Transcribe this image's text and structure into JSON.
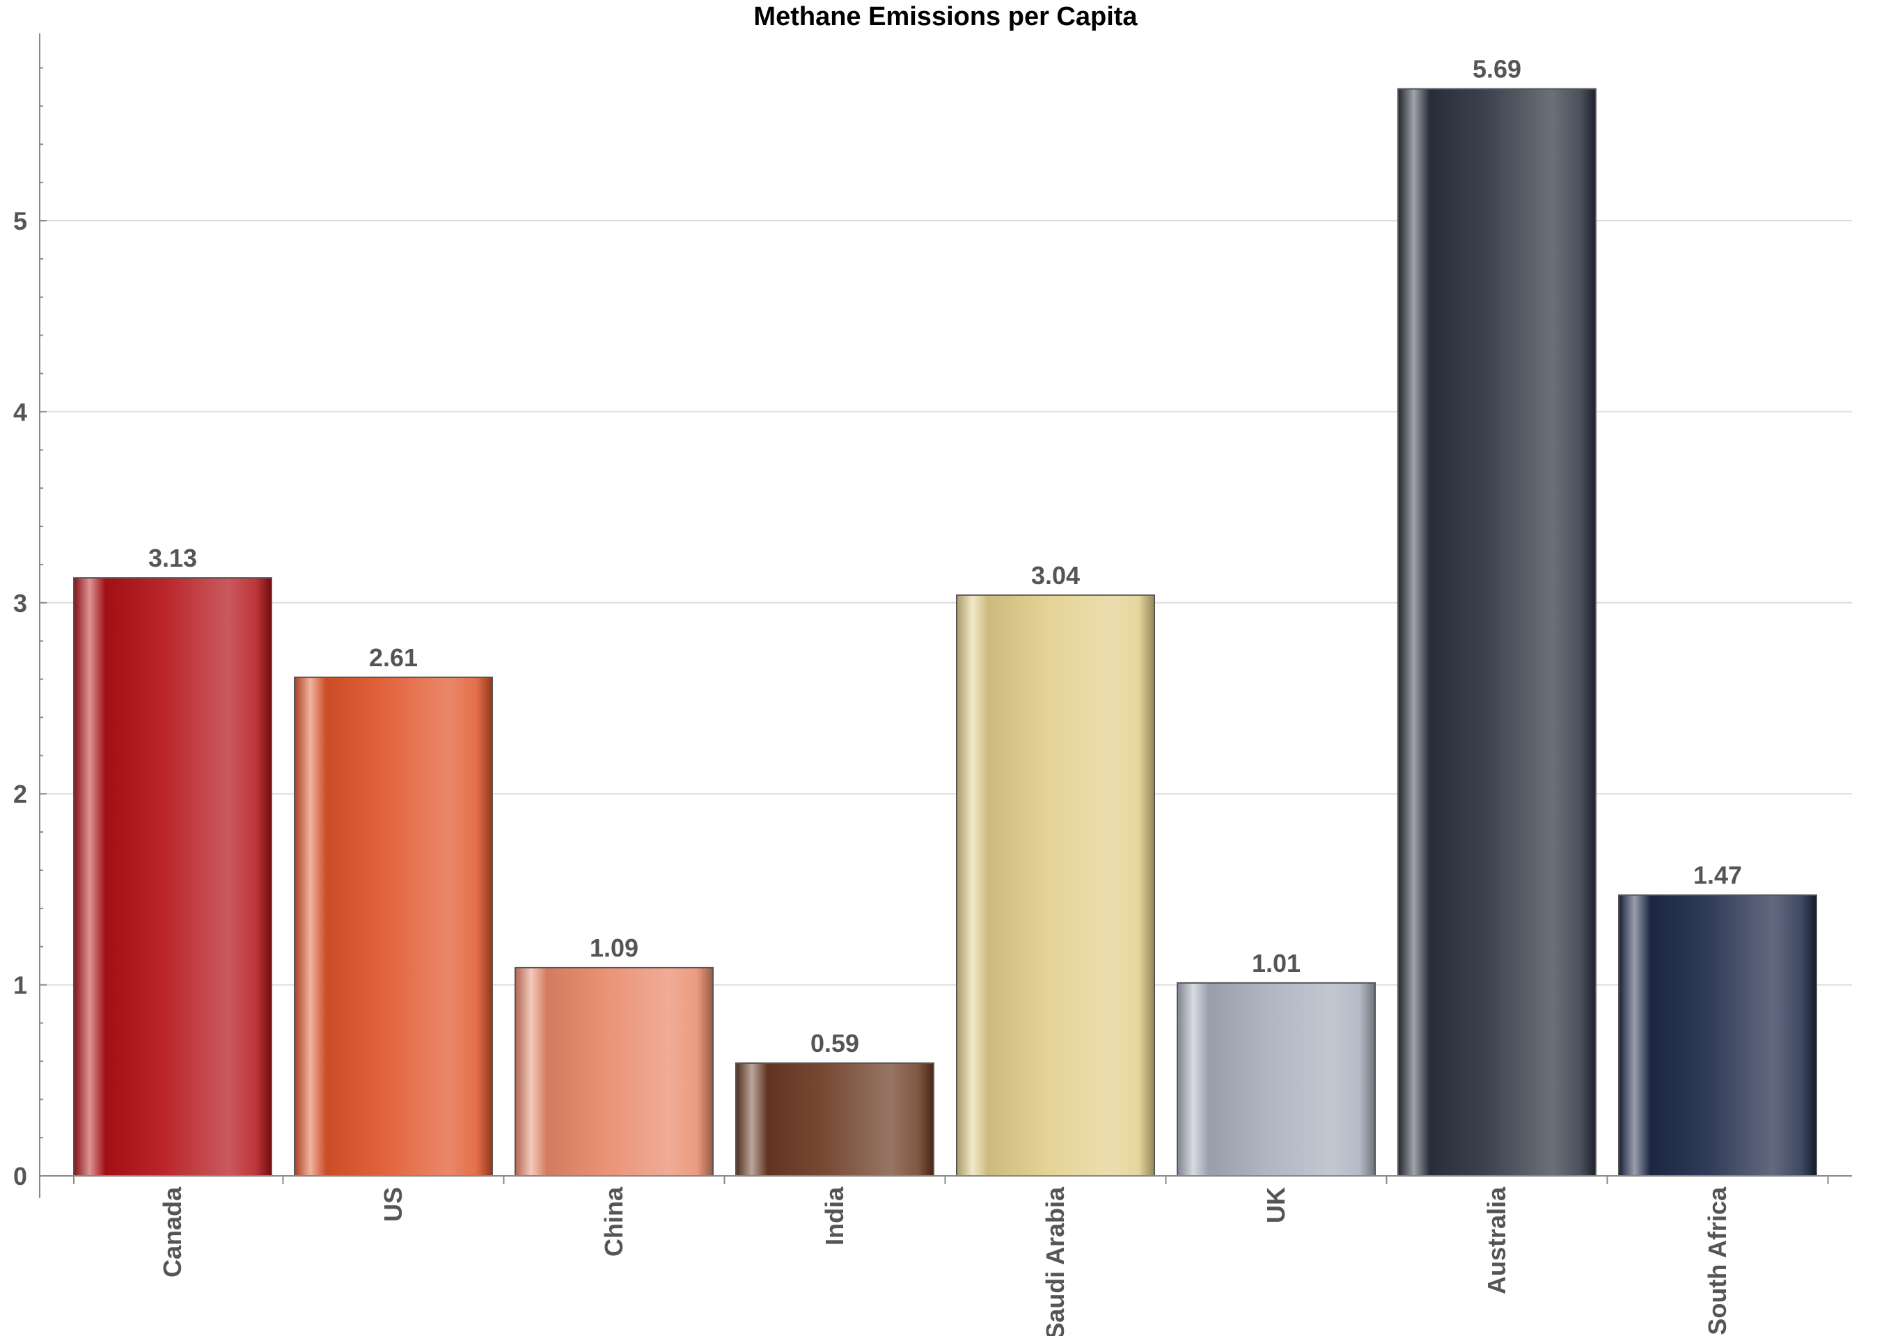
{
  "chart_data": {
    "type": "bar",
    "title": "Methane Emissions per Capita",
    "xlabel": "",
    "ylabel": "",
    "ylim": [
      0,
      5.95
    ],
    "yticks": [
      0,
      1,
      2,
      3,
      4,
      5
    ],
    "grid": true,
    "categories": [
      "Canada",
      "US",
      "China",
      "India",
      "Saudi Arabia",
      "UK",
      "Australia",
      "South Africa"
    ],
    "values": [
      3.13,
      2.61,
      1.09,
      0.59,
      3.04,
      1.01,
      5.69,
      1.47
    ],
    "value_labels": [
      "3.13",
      "2.61",
      "1.09",
      "0.59",
      "3.04",
      "1.01",
      "5.69",
      "1.47"
    ],
    "colors": [
      "#b31217",
      "#e0552a",
      "#e8896a",
      "#6b3a22",
      "#e3cf8c",
      "#a9afbd",
      "#2c3240",
      "#1e2a48"
    ]
  }
}
